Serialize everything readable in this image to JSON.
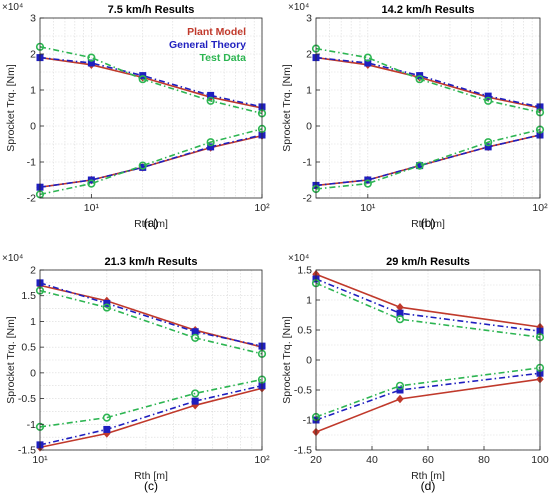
{
  "legend": {
    "entries": [
      {
        "name": "Plant Model",
        "color": "#c0392b"
      },
      {
        "name": "General Theory",
        "color": "#1f1fbf"
      },
      {
        "name": "Test Data",
        "color": "#2db552"
      }
    ]
  },
  "chart_data": [
    {
      "type": "line",
      "title": "7.5 km/h Results",
      "caption": "(a)",
      "xlabel": "Rth [m]",
      "ylabel": "Sprocket Trq. [Nm]",
      "x_scale": "log",
      "xlim": [
        5,
        100
      ],
      "ylim": [
        -20000,
        30000
      ],
      "y_exponent_label": "×10⁴",
      "xticks": [
        {
          "v": 10,
          "label": "10¹"
        },
        {
          "v": 100,
          "label": "10²"
        }
      ],
      "yticks": [
        {
          "v": -20000,
          "label": "-2"
        },
        {
          "v": -10000,
          "label": "-1"
        },
        {
          "v": 0,
          "label": "0"
        },
        {
          "v": 10000,
          "label": "1"
        },
        {
          "v": 20000,
          "label": "2"
        },
        {
          "v": 30000,
          "label": "3"
        }
      ],
      "grid": true,
      "legend_position": "top-right",
      "x": [
        5,
        10,
        20,
        50,
        100
      ],
      "series": [
        {
          "name": "Plant Model",
          "branch": "upper",
          "values": [
            19000,
            17000,
            13500,
            8000,
            5000
          ]
        },
        {
          "name": "Plant Model",
          "branch": "lower",
          "values": [
            -17000,
            -15000,
            -11500,
            -6000,
            -2700
          ]
        },
        {
          "name": "General Theory",
          "branch": "upper",
          "values": [
            19000,
            17500,
            14000,
            8500,
            5300
          ]
        },
        {
          "name": "General Theory",
          "branch": "lower",
          "values": [
            -17000,
            -15000,
            -11500,
            -5800,
            -2500
          ]
        },
        {
          "name": "Test Data",
          "branch": "upper",
          "values": [
            22000,
            19000,
            13000,
            7000,
            3500
          ]
        },
        {
          "name": "Test Data",
          "branch": "lower",
          "values": [
            -19000,
            -16000,
            -11000,
            -4500,
            -800
          ]
        }
      ]
    },
    {
      "type": "line",
      "title": "14.2 km/h Results",
      "caption": "(b)",
      "xlabel": "Rth [m]",
      "ylabel": "Sprocket Trq. [Nm]",
      "x_scale": "log",
      "xlim": [
        5,
        100
      ],
      "ylim": [
        -20000,
        30000
      ],
      "y_exponent_label": "×10⁴",
      "xticks": [
        {
          "v": 10,
          "label": "10¹"
        },
        {
          "v": 100,
          "label": "10²"
        }
      ],
      "yticks": [
        {
          "v": -20000,
          "label": "-2"
        },
        {
          "v": -10000,
          "label": "-1"
        },
        {
          "v": 0,
          "label": "0"
        },
        {
          "v": 10000,
          "label": "1"
        },
        {
          "v": 20000,
          "label": "2"
        },
        {
          "v": 30000,
          "label": "3"
        }
      ],
      "grid": true,
      "x": [
        5,
        10,
        20,
        50,
        100
      ],
      "series": [
        {
          "name": "Plant Model",
          "branch": "upper",
          "values": [
            19000,
            17000,
            13500,
            8000,
            5000
          ]
        },
        {
          "name": "Plant Model",
          "branch": "lower",
          "values": [
            -16500,
            -15000,
            -11000,
            -5800,
            -2500
          ]
        },
        {
          "name": "General Theory",
          "branch": "upper",
          "values": [
            19000,
            17500,
            14000,
            8300,
            5300
          ]
        },
        {
          "name": "General Theory",
          "branch": "lower",
          "values": [
            -16500,
            -15000,
            -11000,
            -5800,
            -2500
          ]
        },
        {
          "name": "Test Data",
          "branch": "upper",
          "values": [
            21500,
            19000,
            13000,
            7000,
            3800
          ]
        },
        {
          "name": "Test Data",
          "branch": "lower",
          "values": [
            -17500,
            -16000,
            -11000,
            -4500,
            -1000
          ]
        }
      ]
    },
    {
      "type": "line",
      "title": "21.3 km/h Results",
      "caption": "(c)",
      "xlabel": "Rth [m]",
      "ylabel": "Sprocket Trq. [Nm]",
      "x_scale": "log",
      "xlim": [
        10,
        100
      ],
      "ylim": [
        -15000,
        20000
      ],
      "y_exponent_label": "×10⁴",
      "xticks": [
        {
          "v": 10,
          "label": "10¹"
        },
        {
          "v": 100,
          "label": "10²"
        }
      ],
      "yticks": [
        {
          "v": -15000,
          "label": "-1.5"
        },
        {
          "v": -10000,
          "label": "-1"
        },
        {
          "v": -5000,
          "label": "-0.5"
        },
        {
          "v": 0,
          "label": "0"
        },
        {
          "v": 5000,
          "label": "0.5"
        },
        {
          "v": 10000,
          "label": "1"
        },
        {
          "v": 15000,
          "label": "1.5"
        },
        {
          "v": 20000,
          "label": "2"
        }
      ],
      "grid": true,
      "x": [
        10,
        20,
        50,
        100
      ],
      "series": [
        {
          "name": "Plant Model",
          "branch": "upper",
          "values": [
            17000,
            14000,
            8300,
            5000
          ]
        },
        {
          "name": "Plant Model",
          "branch": "lower",
          "values": [
            -14500,
            -11800,
            -6300,
            -3000
          ]
        },
        {
          "name": "General Theory",
          "branch": "upper",
          "values": [
            17500,
            13500,
            8000,
            5200
          ]
        },
        {
          "name": "General Theory",
          "branch": "lower",
          "values": [
            -14000,
            -11000,
            -5500,
            -2500
          ]
        },
        {
          "name": "Test Data",
          "branch": "upper",
          "values": [
            16000,
            12700,
            6800,
            3700
          ]
        },
        {
          "name": "Test Data",
          "branch": "lower",
          "values": [
            -10500,
            -8700,
            -4000,
            -1300
          ]
        }
      ]
    },
    {
      "type": "line",
      "title": "29 km/h Results",
      "caption": "(d)",
      "xlabel": "Rth [m]",
      "ylabel": "Sprocket Trq. [Nm]",
      "x_scale": "linear",
      "xlim": [
        20,
        100
      ],
      "ylim": [
        -15000,
        15000
      ],
      "y_exponent_label": "×10⁴",
      "xticks": [
        {
          "v": 20,
          "label": "20"
        },
        {
          "v": 40,
          "label": "40"
        },
        {
          "v": 60,
          "label": "60"
        },
        {
          "v": 80,
          "label": "80"
        },
        {
          "v": 100,
          "label": "100"
        }
      ],
      "yticks": [
        {
          "v": -15000,
          "label": "-1.5"
        },
        {
          "v": -10000,
          "label": "-1"
        },
        {
          "v": -5000,
          "label": "-0.5"
        },
        {
          "v": 0,
          "label": "0"
        },
        {
          "v": 5000,
          "label": "0.5"
        },
        {
          "v": 10000,
          "label": "1"
        },
        {
          "v": 15000,
          "label": "1.5"
        }
      ],
      "grid": true,
      "x": [
        20,
        50,
        100
      ],
      "series": [
        {
          "name": "Plant Model",
          "branch": "upper",
          "values": [
            14300,
            8800,
            5500
          ]
        },
        {
          "name": "Plant Model",
          "branch": "lower",
          "values": [
            -12000,
            -6500,
            -3200
          ]
        },
        {
          "name": "General Theory",
          "branch": "upper",
          "values": [
            13500,
            7800,
            4800
          ]
        },
        {
          "name": "General Theory",
          "branch": "lower",
          "values": [
            -10000,
            -5000,
            -2200
          ]
        },
        {
          "name": "Test Data",
          "branch": "upper",
          "values": [
            12800,
            6800,
            3800
          ]
        },
        {
          "name": "Test Data",
          "branch": "lower",
          "values": [
            -9500,
            -4300,
            -1300
          ]
        }
      ]
    }
  ]
}
